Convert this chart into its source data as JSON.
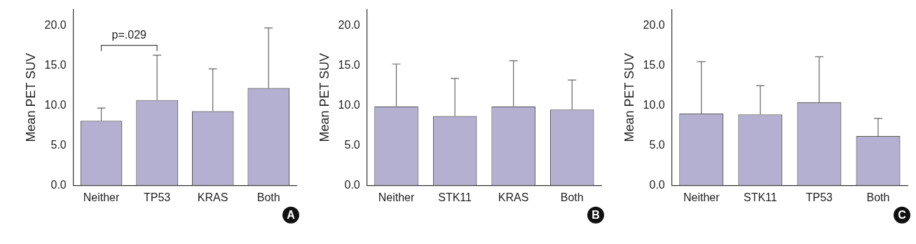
{
  "chart_data": [
    {
      "type": "bar",
      "ylabel": "Mean PET SUV",
      "categories": [
        "Neither",
        "TP53",
        "KRAS",
        "Both"
      ],
      "values": [
        8.1,
        10.7,
        9.3,
        12.2
      ],
      "errors": [
        [
          8.1,
          9.7
        ],
        [
          10.7,
          16.3
        ],
        [
          9.3,
          14.6
        ],
        [
          12.2,
          19.7
        ]
      ],
      "color": "#b3b0d1",
      "ylim": [
        0,
        22
      ],
      "yticks": [
        {
          "value": 0,
          "label": "0.0"
        },
        {
          "value": 5,
          "label": "5.0"
        },
        {
          "value": 10,
          "label": "10.0"
        },
        {
          "value": 15,
          "label": "15.0"
        },
        {
          "value": 20,
          "label": "20.0"
        }
      ],
      "grid": false,
      "legend": false,
      "annotations": [
        "p=.029",
        "A"
      ]
    },
    {
      "type": "bar",
      "ylabel": "Mean PET SUV",
      "categories": [
        "Neither",
        "STK11",
        "KRAS",
        "Both"
      ],
      "values": [
        9.9,
        8.7,
        9.9,
        9.5
      ],
      "errors": [
        [
          9.9,
          15.2
        ],
        [
          8.7,
          13.4
        ],
        [
          9.9,
          15.6
        ],
        [
          9.5,
          13.2
        ]
      ],
      "color": "#b3b0d1",
      "ylim": [
        0,
        22
      ],
      "yticks": [
        {
          "value": 0,
          "label": "0.0"
        },
        {
          "value": 5,
          "label": "5.0"
        },
        {
          "value": 10,
          "label": "10.0"
        },
        {
          "value": 15,
          "label": "15.0"
        },
        {
          "value": 20,
          "label": "20.0"
        }
      ],
      "grid": false,
      "legend": false,
      "annotations": [
        "B"
      ]
    },
    {
      "type": "bar",
      "ylabel": "Mean PET SUV",
      "categories": [
        "Neither",
        "STK11",
        "TP53",
        "Both"
      ],
      "values": [
        9.0,
        8.9,
        10.4,
        6.2
      ],
      "errors": [
        [
          9.0,
          15.5
        ],
        [
          8.9,
          12.5
        ],
        [
          10.4,
          16.1
        ],
        [
          6.2,
          8.4
        ]
      ],
      "color": "#b3b0d1",
      "ylim": [
        0,
        22
      ],
      "yticks": [
        {
          "value": 0,
          "label": "0.0"
        },
        {
          "value": 5,
          "label": "5.0"
        },
        {
          "value": 10,
          "label": "10.0"
        },
        {
          "value": 15,
          "label": "15.0"
        },
        {
          "value": 20,
          "label": "20.0"
        }
      ],
      "grid": false,
      "legend": false,
      "annotations": [
        "C"
      ]
    }
  ]
}
